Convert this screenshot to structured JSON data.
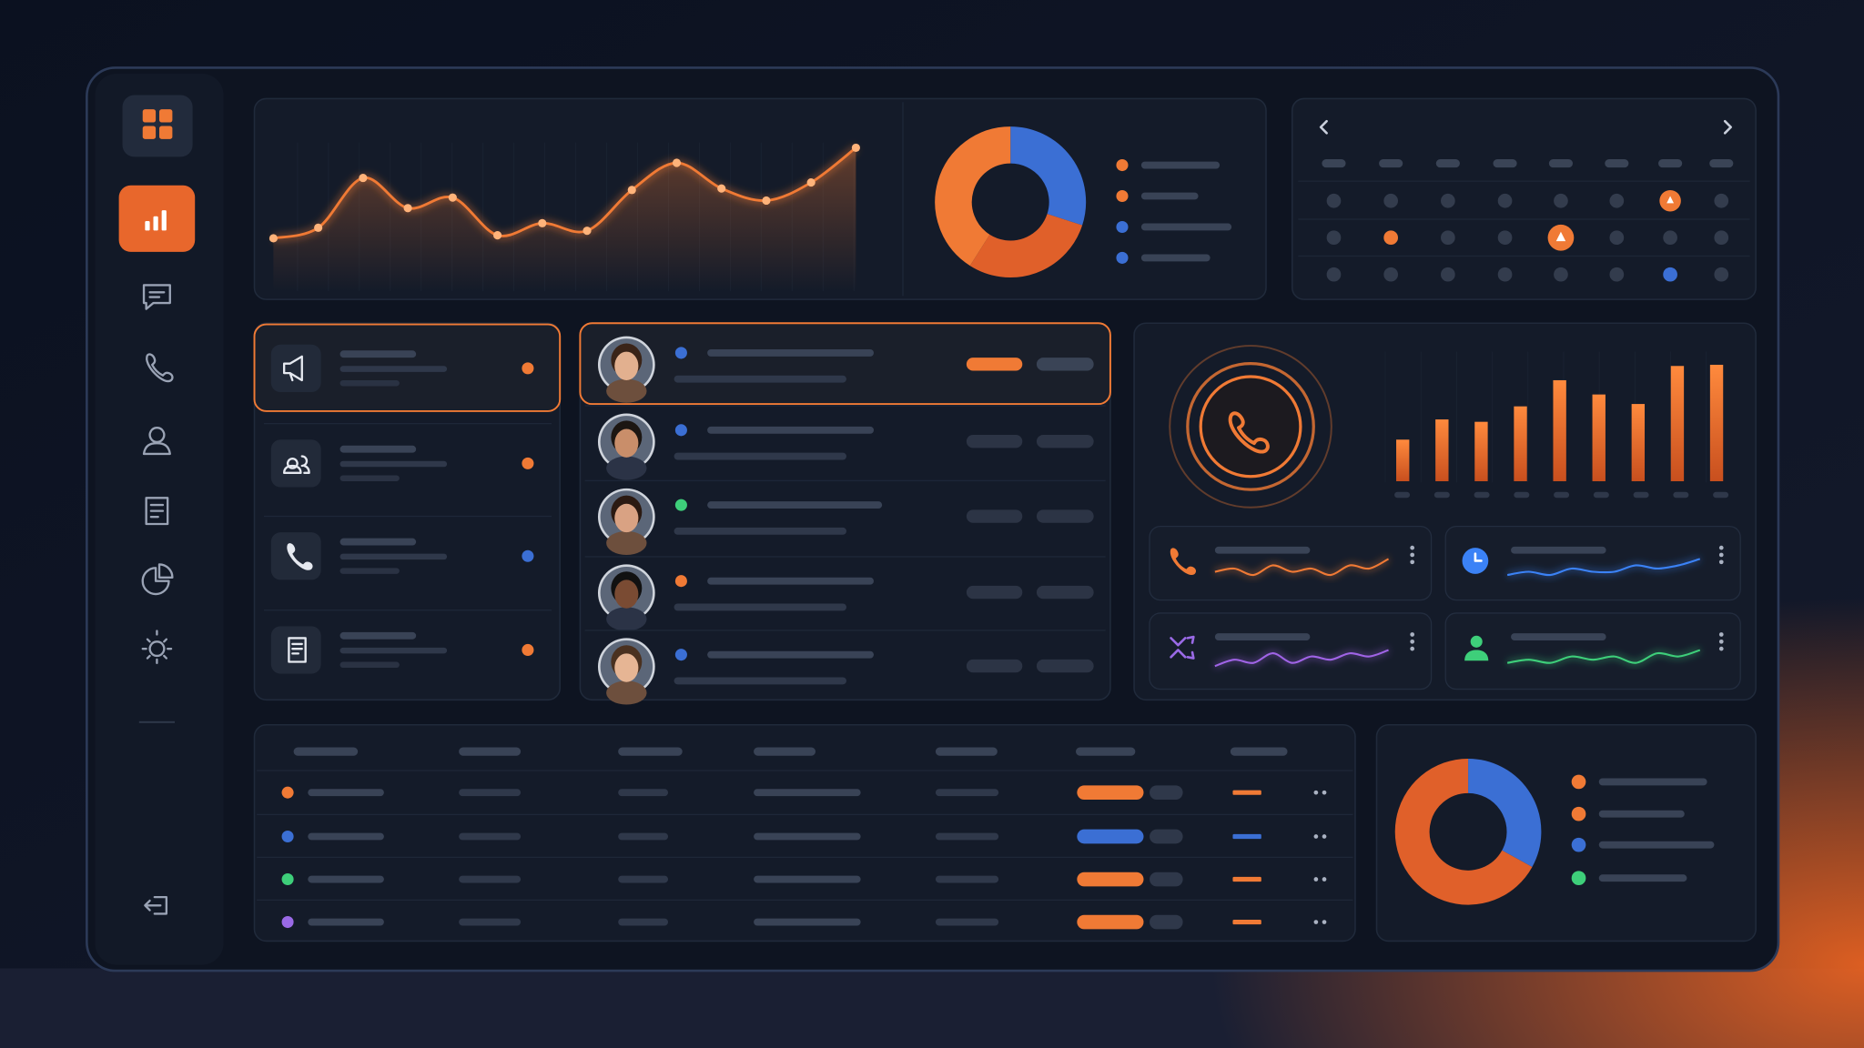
{
  "chart_data": [
    {
      "type": "line",
      "color": "#f07a35",
      "ylim": [
        0,
        100
      ],
      "values": [
        35,
        42,
        75,
        55,
        62,
        37,
        45,
        40,
        67,
        85,
        68,
        60,
        72,
        95
      ]
    },
    {
      "type": "pie",
      "colors": [
        "#3b6fd4",
        "#e0602a",
        "#f07a35"
      ],
      "values": [
        30,
        29,
        41
      ]
    },
    {
      "type": "bar",
      "color": "#f07a35",
      "ylim": [
        0,
        100
      ],
      "values": [
        35,
        52,
        50,
        63,
        85,
        73,
        65,
        97,
        98
      ]
    },
    {
      "type": "line",
      "color": "#f07a35",
      "ylim": [
        0,
        10
      ],
      "values": [
        4,
        5,
        3,
        6,
        4,
        5,
        3,
        6,
        5,
        8
      ]
    },
    {
      "type": "line",
      "color": "#3b82f6",
      "ylim": [
        0,
        10
      ],
      "values": [
        3,
        4,
        3,
        5,
        4,
        4,
        6,
        5,
        6,
        8
      ]
    },
    {
      "type": "line",
      "color": "#a064e6",
      "ylim": [
        0,
        10
      ],
      "values": [
        2,
        4,
        3,
        6,
        3,
        5,
        4,
        6,
        5,
        7
      ]
    },
    {
      "type": "line",
      "color": "#3ecf7a",
      "ylim": [
        0,
        10
      ],
      "values": [
        3,
        4,
        3,
        5,
        4,
        5,
        3,
        6,
        5,
        7
      ]
    },
    {
      "type": "pie",
      "colors": [
        "#3b6fd4",
        "#e0602a"
      ],
      "values": [
        33,
        67
      ]
    }
  ]
}
